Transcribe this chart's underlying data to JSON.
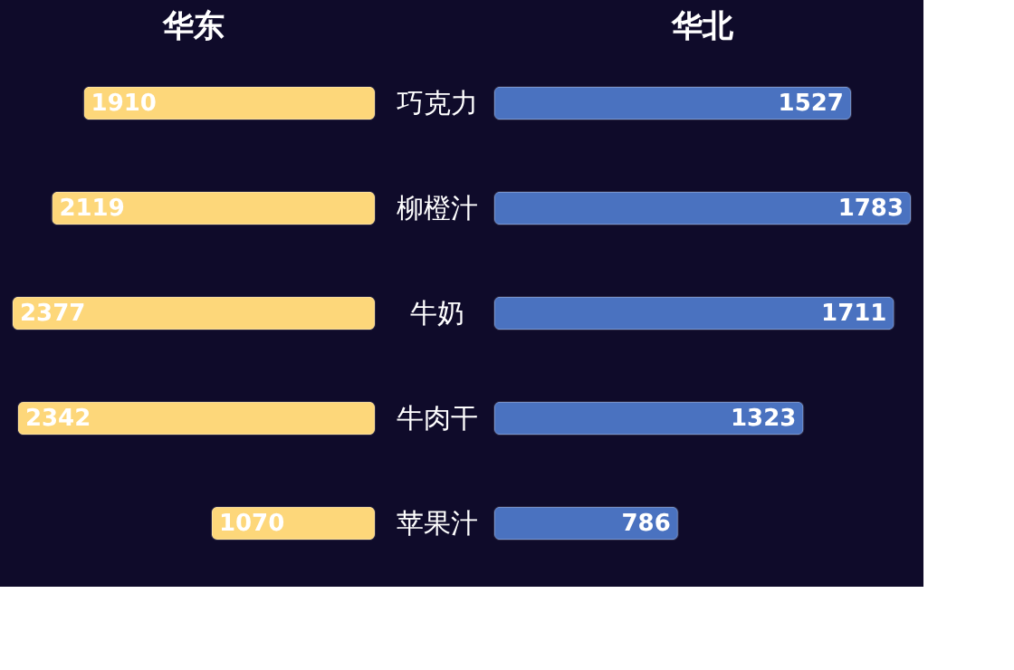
{
  "chart_data": [
    {
      "type": "bar",
      "orientation": "horizontal",
      "title": "华东",
      "categories": [
        "巧克力",
        "柳橙汁",
        "牛奶",
        "牛肉干",
        "苹果汁"
      ],
      "color": "#fdd77a",
      "values": [
        1910,
        2119,
        2377,
        2342,
        1070
      ],
      "data_labels": true,
      "tick_labels": "y"
    },
    {
      "type": "bar",
      "orientation": "horizontal",
      "title": "华北",
      "categories": [
        null,
        null,
        null,
        null,
        null
      ],
      "color": "#4a72c0",
      "values": [
        1527,
        1783,
        1711,
        1323,
        786
      ],
      "data_labels": true,
      "tick_labels": false
    }
  ]
}
